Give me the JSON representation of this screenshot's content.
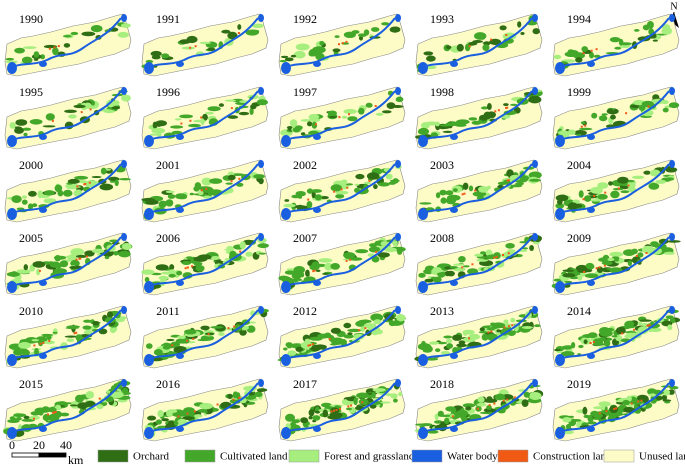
{
  "years": [
    "1990",
    "1991",
    "1992",
    "1993",
    "1994",
    "1995",
    "1996",
    "1997",
    "1998",
    "1999",
    "2000",
    "2001",
    "2002",
    "2003",
    "2004",
    "2005",
    "2006",
    "2007",
    "2008",
    "2009",
    "2010",
    "2011",
    "2012",
    "2013",
    "2014",
    "2015",
    "2016",
    "2017",
    "2018",
    "2019"
  ],
  "legend": [
    {
      "label": "Orchard",
      "color": "#2f6e14"
    },
    {
      "label": "Cultivated land",
      "color": "#43a82a"
    },
    {
      "label": "Forest and grassland",
      "color": "#a6ee7e"
    },
    {
      "label": "Water body",
      "color": "#1a5fe0"
    },
    {
      "label": "Construction land",
      "color": "#f05a14"
    },
    {
      "label": "Unused land",
      "color": "#fdfbc6"
    }
  ],
  "scale_bar": {
    "ticks": [
      "0",
      "20",
      "40"
    ],
    "unit": "km"
  },
  "north": "N"
}
